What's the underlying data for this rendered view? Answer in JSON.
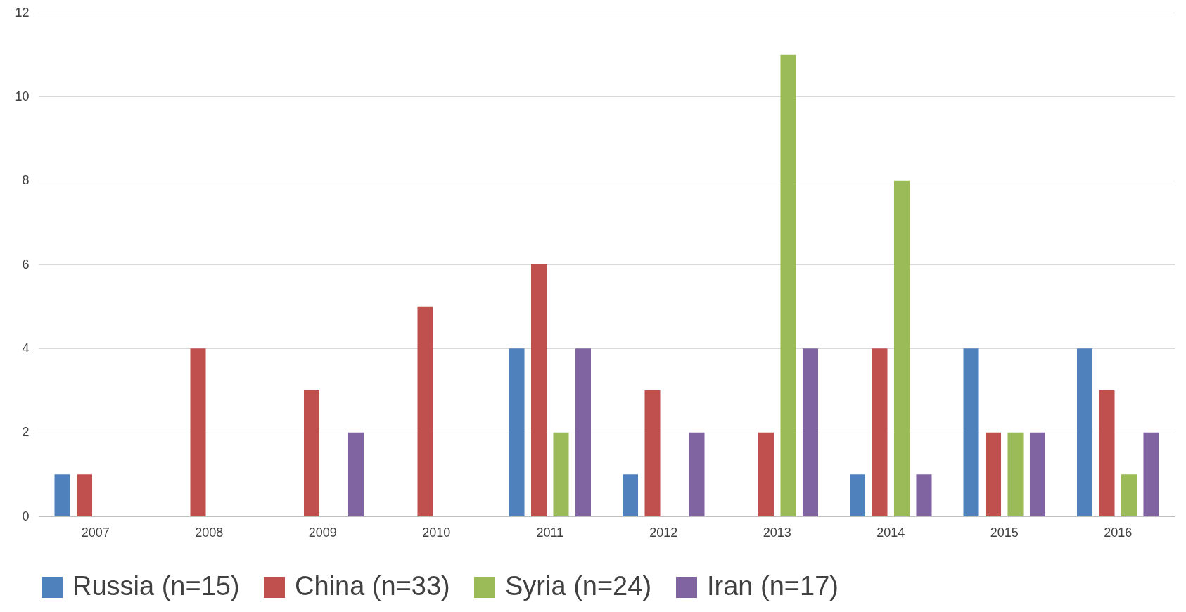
{
  "chart_data": {
    "type": "bar",
    "categories": [
      "2007",
      "2008",
      "2009",
      "2010",
      "2011",
      "2012",
      "2013",
      "2014",
      "2015",
      "2016"
    ],
    "series": [
      {
        "name": "Russia (n=15)",
        "color": "#4f81bd",
        "values": [
          1,
          0,
          0,
          0,
          4,
          1,
          0,
          1,
          4,
          4
        ]
      },
      {
        "name": "China (n=33)",
        "color": "#c0504d",
        "values": [
          1,
          4,
          3,
          5,
          6,
          3,
          2,
          4,
          2,
          3
        ]
      },
      {
        "name": "Syria (n=24)",
        "color": "#9bbb59",
        "values": [
          0,
          0,
          0,
          0,
          2,
          0,
          11,
          8,
          2,
          1
        ]
      },
      {
        "name": "Iran (n=17)",
        "color": "#8064a2",
        "values": [
          0,
          0,
          2,
          0,
          4,
          2,
          4,
          1,
          2,
          2
        ]
      }
    ],
    "ylim": [
      0,
      12
    ],
    "yticks": [
      0,
      2,
      4,
      6,
      8,
      10,
      12
    ],
    "grid": "y",
    "legend": "bottom"
  }
}
